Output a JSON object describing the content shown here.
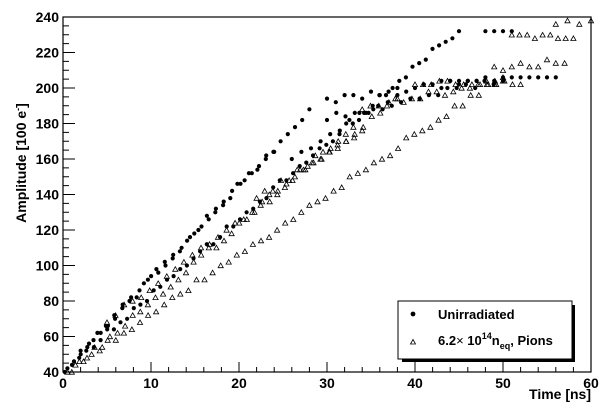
{
  "chart_data": {
    "type": "scatter",
    "xlabel": "Time [ns]",
    "ylabel_main": "Amplitude [100 e",
    "ylabel_sup": "-",
    "ylabel_close": "]",
    "xlim": [
      0,
      60
    ],
    "ylim": [
      40,
      240
    ],
    "x_ticks": [
      0,
      10,
      20,
      30,
      40,
      50,
      60
    ],
    "y_ticks": [
      40,
      60,
      80,
      100,
      120,
      140,
      160,
      180,
      200,
      220,
      240
    ],
    "grid": false,
    "legend_position": "bottom-right",
    "legend": {
      "entry1": "Unirradiated",
      "entry2_a": "6.2",
      "entry2_times": "×",
      "entry2_b": " 10",
      "entry2_exp": "14",
      "entry2_c": "n",
      "entry2_sub": "eq",
      "entry2_d": ", Pions"
    },
    "series": [
      {
        "marker": "filled-circle",
        "segments": [
          {
            "x0": 0.5,
            "x1": 45,
            "y0": 42,
            "y1": 232,
            "n": 60
          },
          {
            "x0": 0.2,
            "x1": 28,
            "y0": 40,
            "y1": 186,
            "n": 35
          },
          {
            "x0": 2,
            "x1": 24,
            "y0": 52,
            "y1": 164,
            "n": 24
          },
          {
            "x0": 30,
            "x1": 47,
            "y0": 192,
            "y1": 203,
            "n": 18
          },
          {
            "x0": 30,
            "x1": 50,
            "y0": 182,
            "y1": 204,
            "n": 20
          },
          {
            "x0": 43,
            "x1": 56,
            "y0": 204,
            "y1": 206,
            "n": 14
          },
          {
            "x0": 48,
            "x1": 51,
            "y0": 232,
            "y1": 232,
            "n": 4
          },
          {
            "x0": 26,
            "x1": 38,
            "y0": 160,
            "y1": 196,
            "n": 12
          }
        ]
      },
      {
        "marker": "open-triangle",
        "segments": [
          {
            "x0": 0.5,
            "x1": 50,
            "y0": 40,
            "y1": 206,
            "n": 55
          },
          {
            "x0": 1,
            "x1": 33,
            "y0": 40,
            "y1": 178,
            "n": 38
          },
          {
            "x0": 5,
            "x1": 38,
            "y0": 68,
            "y1": 193,
            "n": 35
          },
          {
            "x0": 34,
            "x1": 50,
            "y0": 188,
            "y1": 203,
            "n": 18
          },
          {
            "x0": 40,
            "x1": 52,
            "y0": 201,
            "y1": 201,
            "n": 14
          },
          {
            "x0": 49,
            "x1": 57,
            "y0": 210,
            "y1": 214,
            "n": 9
          },
          {
            "x0": 51,
            "x1": 58,
            "y0": 228,
            "y1": 228,
            "n": 9
          },
          {
            "x0": 56,
            "x1": 60,
            "y0": 236,
            "y1": 236,
            "n": 4
          },
          {
            "x0": 22,
            "x1": 34,
            "y0": 136,
            "y1": 176,
            "n": 14
          }
        ]
      }
    ]
  }
}
